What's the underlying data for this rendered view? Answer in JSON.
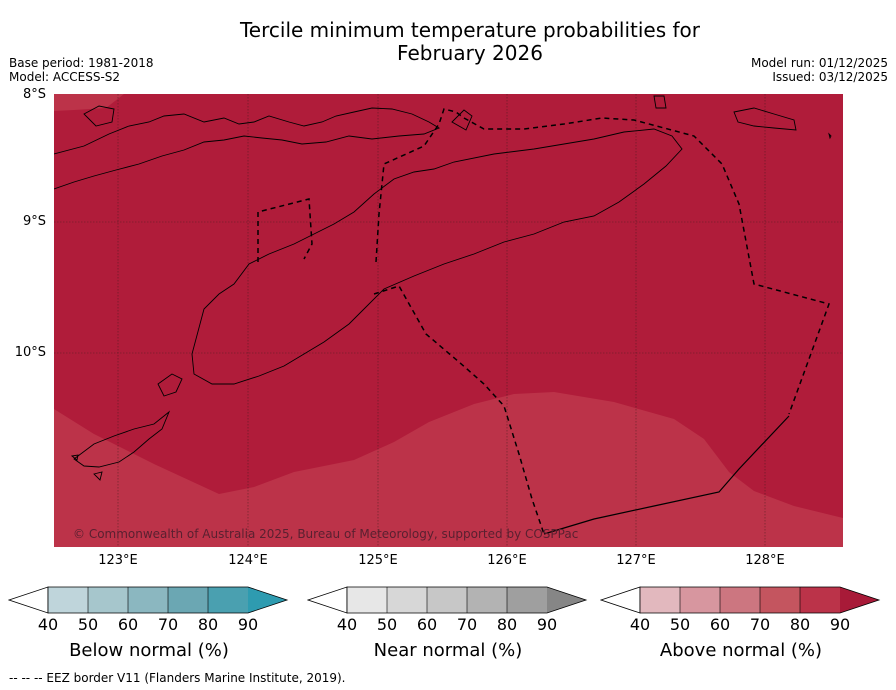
{
  "title": {
    "line1": "Tercile minimum temperature probabilities for",
    "line2": "February 2026"
  },
  "meta": {
    "base_period": "Base period: 1981-2018",
    "model": "Model: ACCESS-S2",
    "model_run": "Model run: 01/12/2025",
    "issued": "Issued: 03/12/2025"
  },
  "map": {
    "lat_labels": [
      "8°S",
      "9°S",
      "10°S"
    ],
    "lon_labels": [
      "123°E",
      "124°E",
      "125°E",
      "126°E",
      "127°E",
      "128°E"
    ],
    "copyright": "© Commonwealth of Australia 2025, Bureau of Meteorology, supported by COSPPac",
    "colors": {
      "above_90": "#b01c3a",
      "above_80": "#bc3349",
      "land_outline": "#000000",
      "grid": "#3a1a1a"
    }
  },
  "colorbars": [
    {
      "name": "below",
      "label": "Below normal (%)",
      "ticks": [
        "40",
        "50",
        "60",
        "70",
        "80",
        "90"
      ],
      "colors": [
        "#ffffff",
        "#bfd5db",
        "#a6c6cc",
        "#8bb7c0",
        "#6ba7b3",
        "#4aa0b0",
        "#2e9bb0"
      ]
    },
    {
      "name": "near",
      "label": "Near normal (%)",
      "ticks": [
        "40",
        "50",
        "60",
        "70",
        "80",
        "90"
      ],
      "colors": [
        "#ffffff",
        "#e7e7e7",
        "#d7d7d7",
        "#c7c7c7",
        "#b3b3b3",
        "#9f9f9f",
        "#868686"
      ]
    },
    {
      "name": "above",
      "label": "Above normal (%)",
      "ticks": [
        "40",
        "50",
        "60",
        "70",
        "80",
        "90"
      ],
      "colors": [
        "#ffffff",
        "#e2b8be",
        "#d7969f",
        "#cc7680",
        "#c4555f",
        "#bb3349",
        "#a81a38"
      ]
    }
  ],
  "footer": "--  --  -- EEZ border V11 (Flanders Marine Institute, 2019)."
}
